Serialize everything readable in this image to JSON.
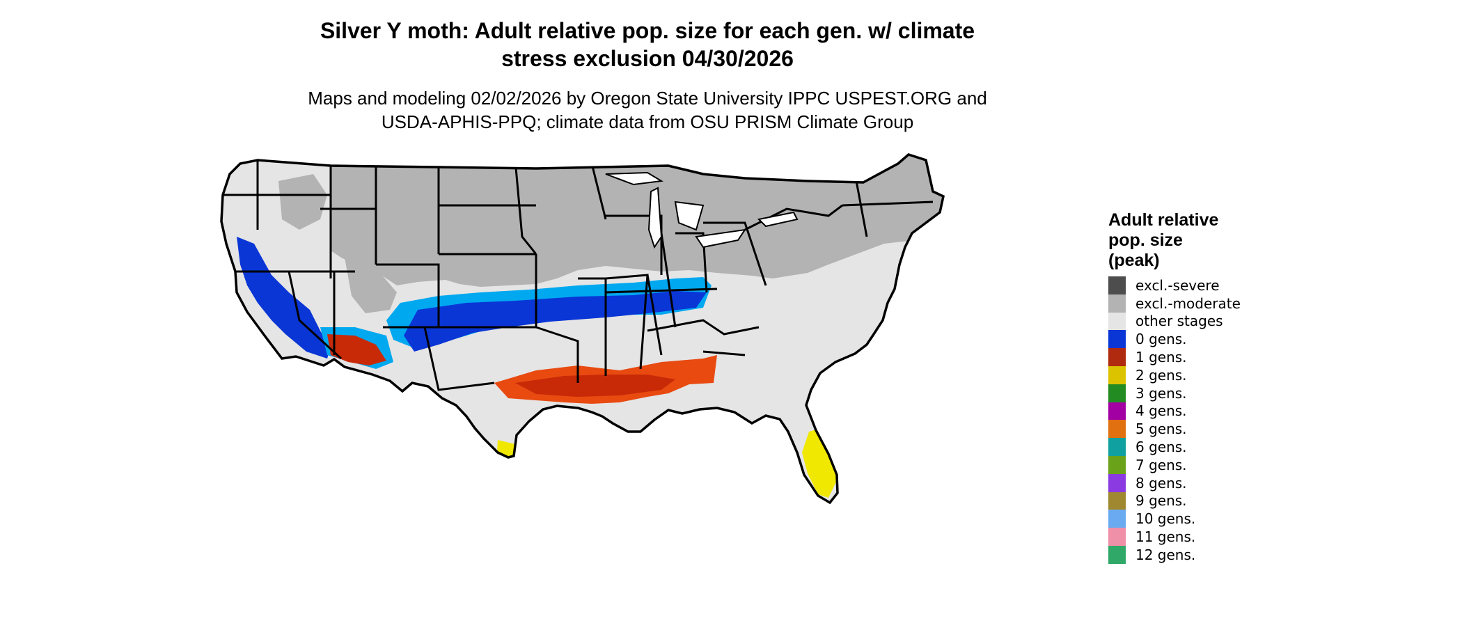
{
  "title_lines": [
    "Silver Y moth: Adult relative pop. size for each gen. w/ climate",
    "stress exclusion 04/30/2026"
  ],
  "subtitle_lines": [
    "Maps and modeling 02/02/2026 by Oregon State University IPPC USPEST.ORG and",
    "USDA-APHIS-PPQ; climate data from OSU PRISM Climate Group"
  ],
  "legend": {
    "title_lines": [
      "Adult relative",
      "pop. size",
      "(peak)"
    ],
    "items": [
      {
        "label": "excl.-severe",
        "color": "#4d4d4d"
      },
      {
        "label": "excl.-moderate",
        "color": "#b3b3b3"
      },
      {
        "label": "other stages",
        "color": "#e5e5e5"
      },
      {
        "label": "0 gens.",
        "color": "#0a36d6"
      },
      {
        "label": "1 gens.",
        "color": "#b02a10"
      },
      {
        "label": "2 gens.",
        "color": "#dcc300"
      },
      {
        "label": "3 gens.",
        "color": "#228b22"
      },
      {
        "label": "4 gens.",
        "color": "#a300a3"
      },
      {
        "label": "5 gens.",
        "color": "#e07010"
      },
      {
        "label": "6 gens.",
        "color": "#10a0a0"
      },
      {
        "label": "7 gens.",
        "color": "#6aa31a"
      },
      {
        "label": "8 gens.",
        "color": "#8a3ae0"
      },
      {
        "label": "9 gens.",
        "color": "#a08830"
      },
      {
        "label": "10 gens.",
        "color": "#6aaaf0"
      },
      {
        "label": "11 gens.",
        "color": "#f090a8"
      },
      {
        "label": "12 gens.",
        "color": "#30a868"
      }
    ]
  },
  "map_colors": {
    "excluded": "#b3b3b3",
    "other_stages": "#e5e5e5",
    "zero_gen_dark": "#0a36d6",
    "zero_gen_light": "#00a8f0",
    "one_gen_red": "#c82a08",
    "one_gen_orange": "#e84a10",
    "two_gen_yellow": "#f0e800",
    "border": "#000000"
  }
}
